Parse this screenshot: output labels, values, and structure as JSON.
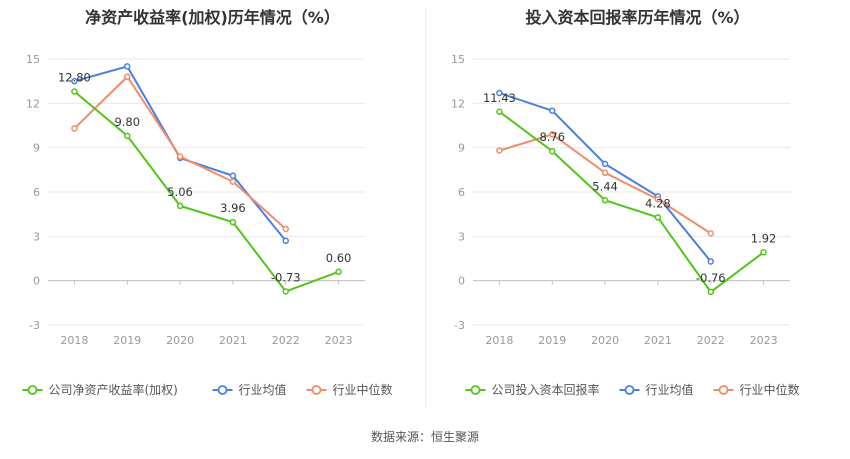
{
  "source_note": "数据来源：恒生聚源",
  "chart_data": [
    {
      "type": "line",
      "title": "净资产收益率(加权)历年情况（%）",
      "categories": [
        "2018",
        "2019",
        "2020",
        "2021",
        "2022",
        "2023"
      ],
      "ylim": [
        -3,
        15
      ],
      "yticks": [
        -3,
        0,
        3,
        6,
        9,
        12,
        15
      ],
      "grid": true,
      "legend_position": "bottom",
      "series": [
        {
          "name": "公司净资产收益率(加权)",
          "color": "#52c41a",
          "values": [
            12.8,
            9.8,
            5.06,
            3.96,
            -0.73,
            0.6
          ],
          "labels": [
            "12.80",
            "9.80",
            "5.06",
            "3.96",
            "-0.73",
            "0.60"
          ]
        },
        {
          "name": "行业均值",
          "color": "#4a7fe0",
          "values": [
            13.5,
            14.5,
            8.3,
            7.1,
            2.7,
            null
          ]
        },
        {
          "name": "行业中位数",
          "color": "#f08c66",
          "values": [
            10.3,
            13.8,
            8.4,
            6.7,
            3.5,
            null
          ]
        }
      ]
    },
    {
      "type": "line",
      "title": "投入资本回报率历年情况（%）",
      "categories": [
        "2018",
        "2019",
        "2020",
        "2021",
        "2022",
        "2023"
      ],
      "ylim": [
        -3,
        15
      ],
      "yticks": [
        -3,
        0,
        3,
        6,
        9,
        12,
        15
      ],
      "grid": true,
      "legend_position": "bottom",
      "series": [
        {
          "name": "公司投入资本回报率",
          "color": "#52c41a",
          "values": [
            11.43,
            8.76,
            5.44,
            4.28,
            -0.76,
            1.92
          ],
          "labels": [
            "11.43",
            "8.76",
            "5.44",
            "4.28",
            "-0.76",
            "1.92"
          ]
        },
        {
          "name": "行业均值",
          "color": "#4a7fe0",
          "values": [
            12.7,
            11.5,
            7.9,
            5.7,
            1.3,
            null
          ]
        },
        {
          "name": "行业中位数",
          "color": "#f08c66",
          "values": [
            8.8,
            9.9,
            7.3,
            5.5,
            3.2,
            null
          ]
        }
      ]
    }
  ]
}
